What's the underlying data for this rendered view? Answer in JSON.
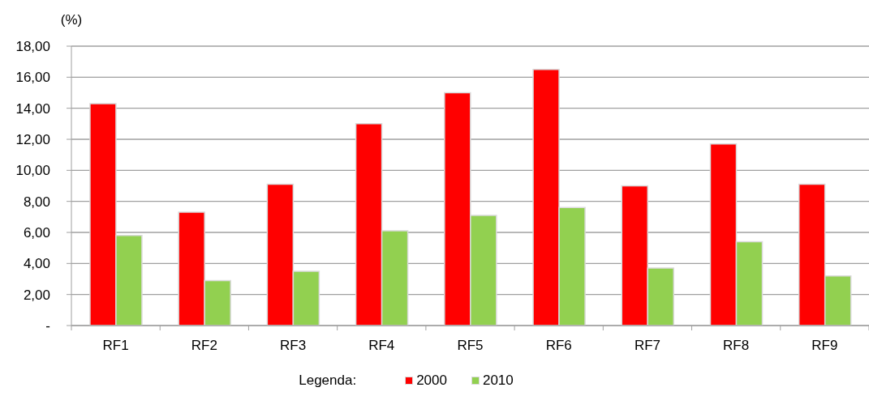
{
  "chart_data": {
    "type": "bar",
    "ylabel": "(%)",
    "legend_title": "Legenda:",
    "categories": [
      "RF1",
      "RF2",
      "RF3",
      "RF4",
      "RF5",
      "RF6",
      "RF7",
      "RF8",
      "RF9"
    ],
    "series": [
      {
        "name": "2000",
        "color": "#ff0000",
        "values": [
          14.3,
          7.3,
          9.1,
          13.0,
          15.0,
          16.5,
          9.0,
          11.7,
          9.1
        ]
      },
      {
        "name": "2010",
        "color": "#92d050",
        "values": [
          5.8,
          2.9,
          3.5,
          6.1,
          7.1,
          7.6,
          3.7,
          5.4,
          3.2
        ]
      }
    ],
    "ylim": [
      0,
      18
    ],
    "yticks": [
      {
        "value": 0,
        "label": "-"
      },
      {
        "value": 2,
        "label": "2,00"
      },
      {
        "value": 4,
        "label": "4,00"
      },
      {
        "value": 6,
        "label": "6,00"
      },
      {
        "value": 8,
        "label": "8,00"
      },
      {
        "value": 10,
        "label": "10,00"
      },
      {
        "value": 12,
        "label": "12,00"
      },
      {
        "value": 14,
        "label": "14,00"
      },
      {
        "value": 16,
        "label": "16,00"
      },
      {
        "value": 18,
        "label": "18,00"
      }
    ],
    "grid": "y",
    "legend": "bottom"
  }
}
